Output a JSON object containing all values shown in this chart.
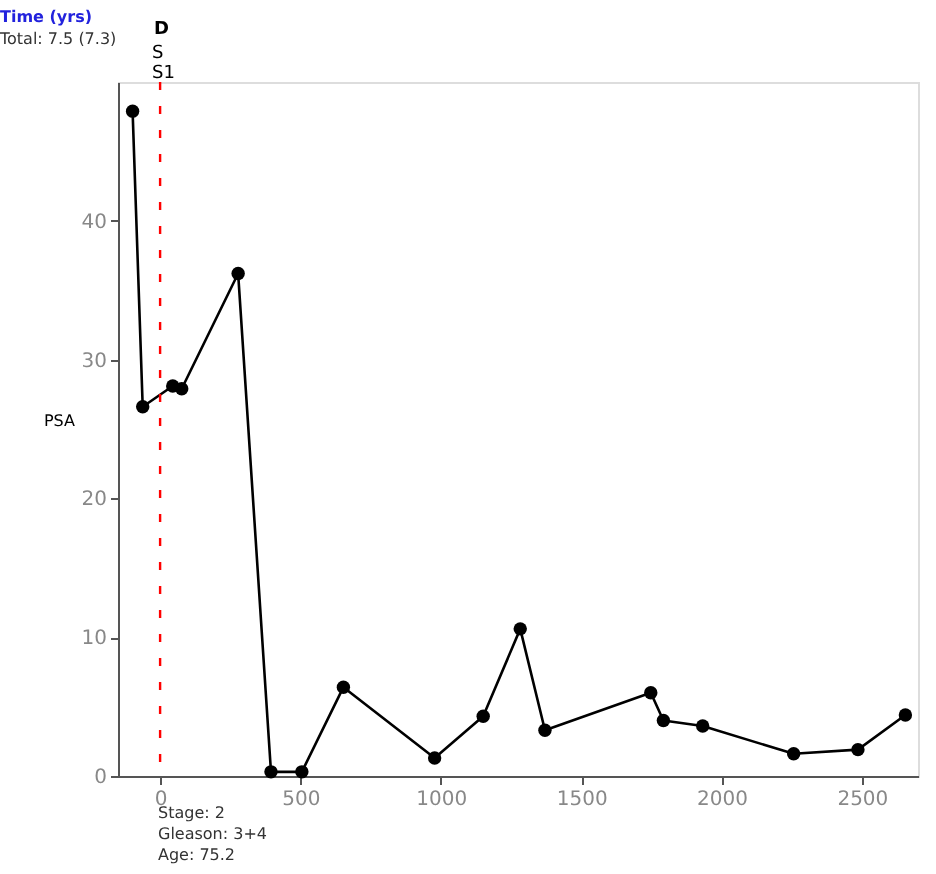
{
  "chart_data": {
    "type": "line",
    "ylabel": "PSA",
    "annotations": [
      "Time (yrs)",
      "Total: 7.5 (7.3)",
      "Stage: 2",
      "Gleason: 3+4",
      "Age: 75.2",
      "S",
      "S1"
    ],
    "x": [
      -98,
      -62,
      45,
      77,
      278,
      395,
      505,
      653,
      978,
      1151,
      1283,
      1371,
      1748,
      1793,
      1933,
      2257,
      2486,
      2655
    ],
    "series": [
      {
        "color": "#000000",
        "values": [
          47.9,
          26.6,
          28.1,
          27.9,
          36.2,
          0.3,
          0.3,
          6.4,
          1.3,
          4.3,
          10.6,
          3.3,
          6.0,
          4.0,
          3.6,
          1.6,
          1.9,
          4.4
        ]
      }
    ],
    "xlim": [
      -150,
      2700
    ],
    "ylim": [
      0,
      50
    ],
    "xticks": [
      0,
      500,
      1000,
      1500,
      2000,
      2500
    ],
    "yticks": [
      0,
      10,
      20,
      30,
      40
    ],
    "ref_lines": [
      {
        "axis": "x",
        "value": 0,
        "label": "D",
        "color": "#ff0000",
        "line_style": "dashed"
      }
    ],
    "grid": false,
    "marker": "circle",
    "line_style": "solid"
  }
}
